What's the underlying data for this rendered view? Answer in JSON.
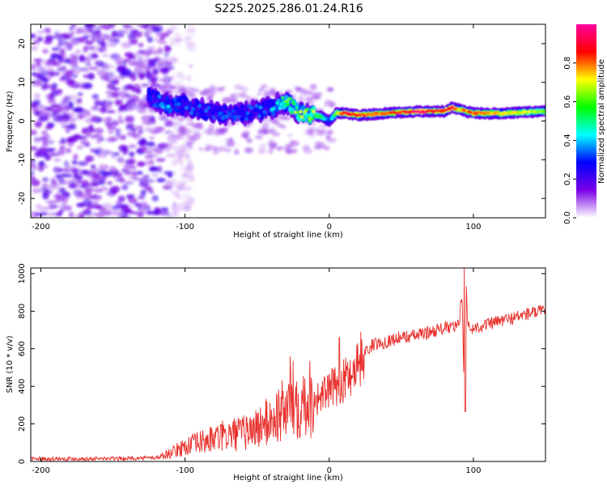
{
  "figure": {
    "title": "S225.2025.286.01.24.R16"
  },
  "chart_data": [
    {
      "type": "heatmap",
      "name": "spectrogram",
      "xlabel": "Height of straight line (km)",
      "ylabel": "Frequency (Hz)",
      "xlim": [
        -207,
        150
      ],
      "ylim": [
        -25,
        25
      ],
      "xticks": [
        -200,
        -100,
        0,
        100
      ],
      "yticks": [
        -20,
        -10,
        0,
        10,
        20
      ],
      "xtick_labels": [
        "-200",
        "-100",
        "0",
        "100"
      ],
      "ytick_labels": [
        "-20",
        "-10",
        "0",
        "10",
        "20"
      ],
      "colorbar": {
        "label": "Normalized spectral amplitude",
        "range": [
          0,
          1
        ],
        "ticks": [
          0.0,
          0.2,
          0.4,
          0.6,
          0.8
        ],
        "tick_labels": [
          "0.0",
          "0.2",
          "0.4",
          "0.6",
          "0.8"
        ],
        "colors": [
          "#ffffff",
          "#7a00e6",
          "#0000ff",
          "#00ffff",
          "#00ff00",
          "#ffff00",
          "#ff0000",
          "#ff00a0"
        ]
      },
      "ridge": {
        "x": [
          -125,
          -110,
          -100,
          -90,
          -80,
          -70,
          -60,
          -50,
          -40,
          -30,
          -20,
          -10,
          -5,
          0,
          5,
          10,
          20,
          40,
          60,
          80,
          85,
          90,
          100,
          110,
          120,
          150
        ],
        "freq": [
          6,
          4,
          4,
          3,
          2,
          2,
          2,
          2.5,
          3.5,
          5,
          2,
          1.5,
          1,
          0,
          2,
          2,
          1.5,
          2,
          2.5,
          2.5,
          3.5,
          3,
          2,
          2,
          2,
          2.5
        ],
        "amplitude": [
          0.3,
          0.35,
          0.3,
          0.28,
          0.3,
          0.32,
          0.28,
          0.3,
          0.35,
          0.55,
          0.55,
          0.6,
          0.55,
          0.3,
          0.65,
          0.9,
          0.88,
          0.8,
          0.95,
          0.9,
          0.95,
          0.75,
          0.85,
          0.8,
          0.75,
          0.65
        ]
      },
      "noise_region_x": [
        -207,
        -110
      ]
    },
    {
      "type": "line",
      "name": "snr",
      "xlabel": "Height of straight line (km)",
      "ylabel": "SNR (10 * v/v)",
      "xlim": [
        -207,
        150
      ],
      "ylim": [
        0,
        1030
      ],
      "xticks": [
        -200,
        -100,
        0,
        100
      ],
      "yticks": [
        0,
        200,
        400,
        600,
        800,
        1000
      ],
      "xtick_labels": [
        "-200",
        "-100",
        "0",
        "100"
      ],
      "ytick_labels": [
        "0",
        "200",
        "400",
        "600",
        "800",
        "1000"
      ],
      "color": "#e8302c",
      "series": [
        {
          "name": "SNR",
          "x": [
            -207,
            -180,
            -150,
            -130,
            -120,
            -110,
            -100,
            -90,
            -80,
            -70,
            -60,
            -50,
            -40,
            -30,
            -25,
            -20,
            -15,
            -10,
            -5,
            0,
            5,
            10,
            15,
            20,
            25,
            30,
            40,
            50,
            60,
            70,
            80,
            90,
            92,
            94,
            95,
            96,
            98,
            100,
            110,
            120,
            130,
            140,
            150
          ],
          "y": [
            15,
            15,
            15,
            18,
            20,
            45,
            80,
            100,
            120,
            140,
            150,
            180,
            220,
            280,
            330,
            320,
            350,
            330,
            350,
            380,
            400,
            430,
            470,
            530,
            580,
            620,
            640,
            660,
            670,
            690,
            710,
            720,
            900,
            300,
            980,
            720,
            700,
            710,
            730,
            750,
            770,
            790,
            800
          ]
        }
      ],
      "spikes": [
        {
          "x": -27,
          "y": 560
        },
        {
          "x": 7,
          "y": 660
        },
        {
          "x": 93.5,
          "y": 1030
        },
        {
          "x": 94.5,
          "y": 265
        }
      ]
    }
  ]
}
